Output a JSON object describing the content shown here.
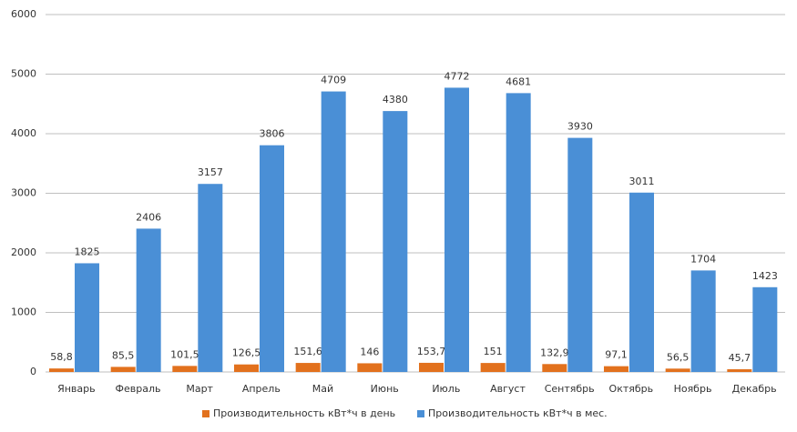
{
  "chart_data": {
    "type": "bar",
    "categories": [
      "Январь",
      "Февраль",
      "Март",
      "Апрель",
      "Май",
      "Июнь",
      "Июль",
      "Август",
      "Сентябрь",
      "Октябрь",
      "Ноябрь",
      "Декабрь"
    ],
    "series": [
      {
        "name": "Производительность  кВт*ч  в день",
        "color": "#e2711d",
        "values": [
          58.8,
          85.5,
          101.5,
          126.5,
          151.6,
          146,
          153.7,
          151,
          132.9,
          97.1,
          56.5,
          45.7
        ],
        "value_labels": [
          "58,8",
          "85,5",
          "101,5",
          "126,5",
          "151,6",
          "146",
          "153,7",
          "151",
          "132,9",
          "97,1",
          "56,5",
          "45,7"
        ]
      },
      {
        "name": "Производительность  кВт*ч  в мес.",
        "color": "#4a8fd6",
        "values": [
          1825,
          2406,
          3157,
          3806,
          4709,
          4380,
          4772,
          4681,
          3930,
          3011,
          1704,
          1423
        ]
      }
    ],
    "ylim": [
      0,
      6000
    ],
    "yticks": [
      0,
      1000,
      2000,
      3000,
      4000,
      5000,
      6000
    ],
    "grid": true,
    "legend": "bottom"
  }
}
